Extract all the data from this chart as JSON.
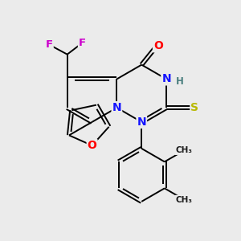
{
  "background_color": "#ebebeb",
  "atom_colors": {
    "C": "#000000",
    "N": "#1414ff",
    "O": "#ff0000",
    "F": "#cc00cc",
    "S": "#b8b800",
    "H": "#4d8080"
  },
  "bond_color": "#000000",
  "lw": 1.4
}
